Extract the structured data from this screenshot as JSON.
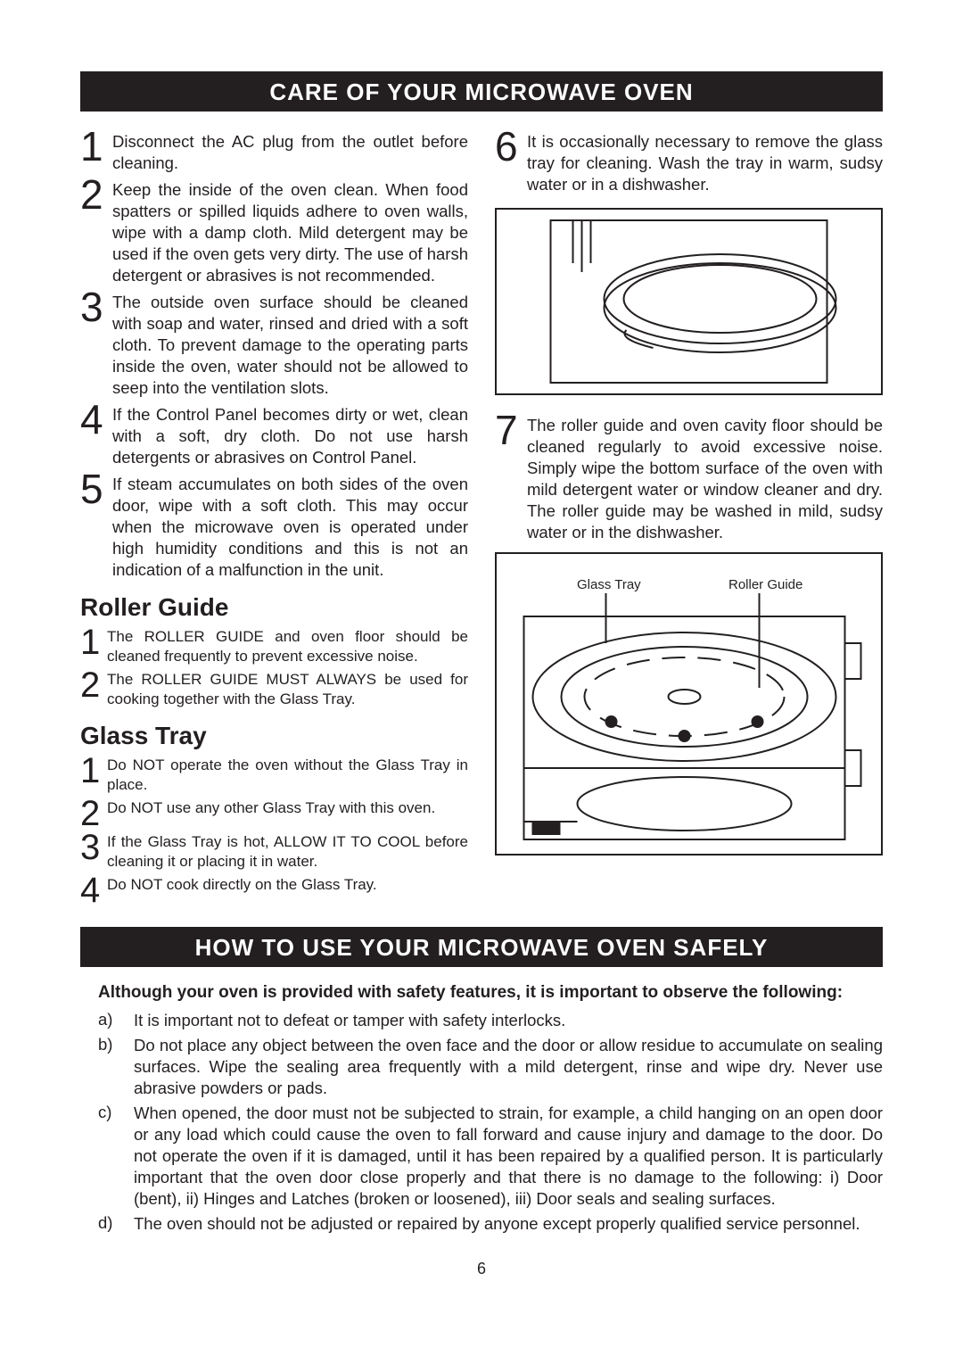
{
  "banner1": "CARE OF YOUR MICROWAVE OVEN",
  "care_left": [
    "Disconnect the AC plug from the outlet before cleaning.",
    "Keep the inside of the oven clean. When food spatters or spilled liquids adhere to oven walls, wipe with a damp cloth. Mild detergent may be used if the oven gets very dirty. The use of harsh detergent or abrasives is not recommended.",
    "The outside oven surface should be cleaned with soap and water, rinsed and dried with a soft cloth. To prevent damage to the operating parts inside the oven, water should not be allowed to seep into the ventilation slots.",
    "If the Control Panel becomes dirty or wet, clean with a soft, dry cloth. Do not use harsh detergents or abrasives on Control Panel.",
    "If steam accumulates on both sides of the oven door, wipe with a soft cloth. This may occur when the microwave oven is operated under high humidity conditions and this is not an indication of a malfunction in the unit."
  ],
  "care_right_6": "It is occasionally necessary to remove the glass tray for cleaning. Wash the tray in warm, sudsy water or in a dishwasher.",
  "care_right_7": "The roller guide and oven cavity floor should be cleaned regularly to avoid excessive noise. Simply wipe the bottom surface of the oven with mild detergent water or window cleaner and dry. The roller guide may be washed in mild, sudsy water or in the dishwasher.",
  "roller_h": "Roller Guide",
  "roller_items": [
    "The ROLLER GUIDE and oven floor should be cleaned frequently to prevent excessive noise.",
    "The ROLLER GUIDE MUST ALWAYS be used for cooking together with the Glass Tray."
  ],
  "glass_h": "Glass Tray",
  "glass_items": [
    "Do NOT operate the oven without the Glass Tray in place.",
    "Do NOT use any other Glass Tray with this oven.",
    "If the Glass Tray is hot, ALLOW IT TO COOL before cleaning it or placing it in water.",
    "Do NOT cook directly on the Glass Tray."
  ],
  "label_glass": "Glass Tray",
  "label_roller": "Roller Guide",
  "banner2": "HOW TO USE YOUR MICROWAVE OVEN SAFELY",
  "safety_intro": "Although your oven is provided with safety features, it is important to observe the following:",
  "safety": [
    {
      "l": "a)",
      "t": "It is important not to defeat or tamper with safety interlocks."
    },
    {
      "l": "b)",
      "t": "Do not place any object between the oven face and the door or allow residue to accumulate on sealing surfaces. Wipe the sealing area frequently with a mild detergent, rinse and wipe dry. Never use abrasive powders or pads."
    },
    {
      "l": "c)",
      "t": "When opened, the door must not be subjected to strain, for example, a child hanging on an open door or any load which could cause the oven to fall forward and cause injury and damage to the door. Do not operate the oven if it is damaged, until it has been repaired by a qualified person. It is particularly important that the oven door close properly and that there is no damage to the following: i) Door (bent), ii) Hinges and Latches (broken or loosened), iii) Door seals and sealing surfaces."
    },
    {
      "l": "d)",
      "t": "The oven should not be adjusted or repaired by anyone except properly qualified service personnel."
    }
  ],
  "page_number": "6",
  "colors": {
    "ink": "#231f20",
    "paper": "#ffffff"
  }
}
